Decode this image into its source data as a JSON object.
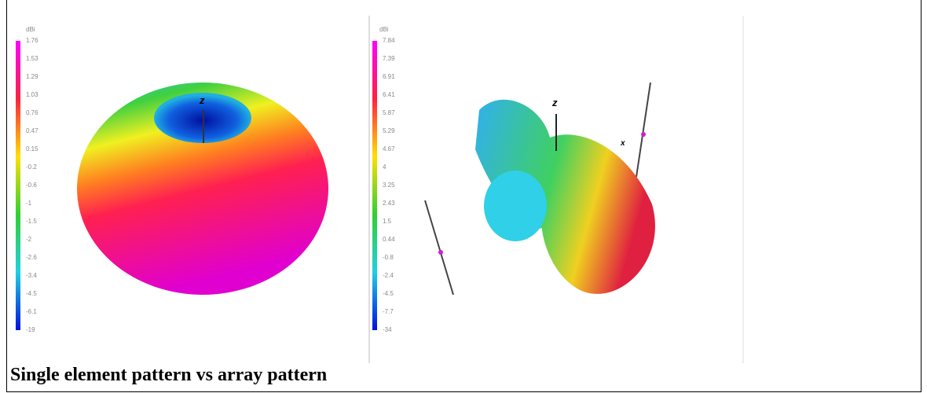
{
  "figure": {
    "panels": [
      {
        "unit": "dBi",
        "scale_labels": [
          "1.76",
          "1.53",
          "1.29",
          "1.03",
          "0.76",
          "0.47",
          "0.15",
          "-0.2",
          "-0.6",
          "-1",
          "-1.5",
          "-2",
          "-2.6",
          "-3.4",
          "-4.5",
          "-6.1",
          "-19"
        ],
        "axis_labels": [
          "z"
        ]
      },
      {
        "unit": "dBi",
        "scale_labels": [
          "7.84",
          "7.39",
          "6.91",
          "6.41",
          "5.87",
          "5.29",
          "4.67",
          "4",
          "3.25",
          "2.43",
          "1.5",
          "0.44",
          "-0.8",
          "-2.4",
          "-4.5",
          "-7.7",
          "-34"
        ],
        "axis_labels": [
          "z",
          "x"
        ]
      }
    ],
    "caption": "Single element pattern vs array pattern"
  }
}
